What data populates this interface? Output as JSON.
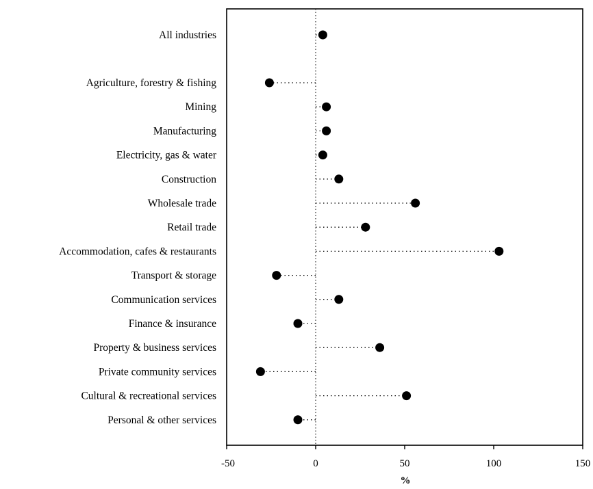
{
  "chart_data": {
    "type": "dot",
    "title": "",
    "xlabel": "%",
    "ylabel": "",
    "xlim": [
      -50,
      150
    ],
    "xticks": [
      -50,
      0,
      50,
      100,
      150
    ],
    "xtick_labels": [
      "-50",
      "0",
      "50",
      "100",
      "150"
    ],
    "grid": false,
    "legend": "none",
    "zero_line": "dotted",
    "leader_lines": "dotted",
    "marker_color": "#000000",
    "categories": [
      "All industries",
      "Agriculture, forestry & fishing",
      "Mining",
      "Manufacturing",
      "Electricity, gas & water",
      "Construction",
      "Wholesale trade",
      "Retail trade",
      "Accommodation, cafes & restaurants",
      "Transport & storage",
      "Communication services",
      "Finance & insurance",
      "Property & business services",
      "Private community services",
      "Cultural & recreational services",
      "Personal & other services"
    ],
    "values": [
      4,
      -26,
      6,
      6,
      4,
      13,
      56,
      28,
      103,
      -22,
      13,
      -10,
      36,
      -31,
      51,
      -10
    ]
  }
}
